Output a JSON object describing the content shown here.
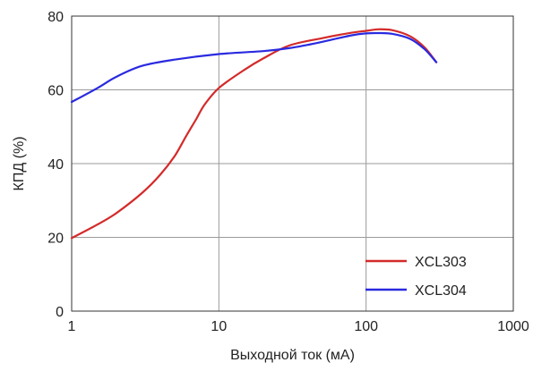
{
  "chart_data": {
    "type": "line",
    "x_scale": "log",
    "xlim": [
      1,
      1000
    ],
    "ylim": [
      0,
      80
    ],
    "x_ticks": [
      1,
      10,
      100,
      1000
    ],
    "x_tick_labels": [
      "1",
      "10",
      "100",
      "1000"
    ],
    "y_ticks": [
      0,
      20,
      40,
      60,
      80
    ],
    "y_tick_labels": [
      "0",
      "20",
      "40",
      "60",
      "80"
    ],
    "xlabel": "Выходной ток (мА)",
    "ylabel": "КПД (%)",
    "grid": true,
    "legend_position": "bottom-right",
    "series": [
      {
        "name": "XCL303",
        "color": "#d42a2a",
        "x": [
          1,
          1.5,
          2,
          3,
          4,
          5,
          6,
          7,
          8,
          10,
          15,
          20,
          30,
          50,
          80,
          100,
          120,
          150,
          200,
          250,
          300
        ],
        "y": [
          19.8,
          23.5,
          26.5,
          32,
          37,
          42,
          47.5,
          52,
          56,
          60.5,
          65.5,
          68.5,
          72,
          74,
          75.5,
          76,
          76.4,
          76.2,
          74.5,
          71.5,
          67.5
        ]
      },
      {
        "name": "XCL304",
        "color": "#2a2ae0",
        "x": [
          1,
          1.5,
          2,
          3,
          5,
          10,
          20,
          30,
          40,
          50,
          80,
          100,
          120,
          150,
          200,
          250,
          300
        ],
        "y": [
          56.7,
          60.5,
          63.5,
          66.5,
          68.2,
          69.7,
          70.5,
          71.3,
          72.2,
          73,
          74.8,
          75.3,
          75.4,
          75.2,
          73.8,
          71,
          67.5
        ]
      }
    ]
  }
}
